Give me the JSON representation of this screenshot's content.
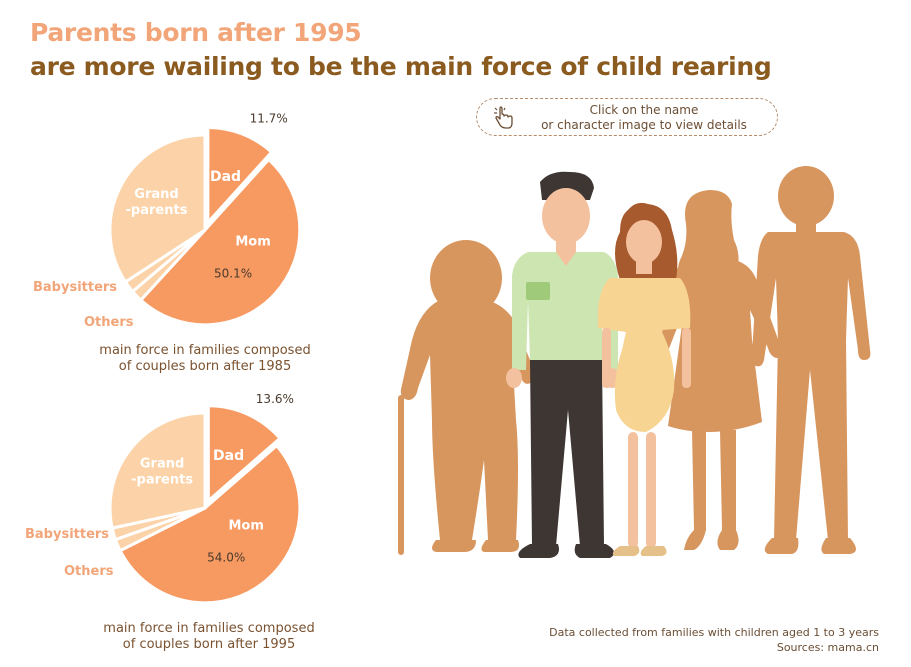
{
  "title": {
    "line1": "Parents born after 1995",
    "line2": "are more wailing to be the main force of child rearing"
  },
  "hint": {
    "icon": "pointer-hand-icon",
    "line1": "Click on the name",
    "line2": "or character image to view details"
  },
  "colors": {
    "mom": "#f79a62",
    "dad": "#f79a62",
    "grandparents": "#fcd3a8",
    "babysitters": "#fcd3a8",
    "others": "#fcd3a8",
    "label_orange": "#f2a578",
    "figure_brown": "#d8965f"
  },
  "chart_data": [
    {
      "type": "pie",
      "caption_line1": "main force in families composed",
      "caption_line2": "of couples born after 1985",
      "slices": [
        {
          "name": "Dad",
          "value": 11.7,
          "label": "11.7%"
        },
        {
          "name": "Mom",
          "value": 50.1,
          "label": "50.1%"
        },
        {
          "name": "Others",
          "value": 2.0
        },
        {
          "name": "Babysitters",
          "value": 2.0
        },
        {
          "name": "Grand\n-parents",
          "value": 34.2
        }
      ]
    },
    {
      "type": "pie",
      "caption_line1": "main force in families composed",
      "caption_line2": "of couples born after 1995",
      "slices": [
        {
          "name": "Dad",
          "value": 13.6,
          "label": "13.6%"
        },
        {
          "name": "Mom",
          "value": 54.0,
          "label": "54.0%"
        },
        {
          "name": "Others",
          "value": 2.0
        },
        {
          "name": "Babysitters",
          "value": 2.0
        },
        {
          "name": "Grand\n-parents",
          "value": 28.4
        }
      ]
    }
  ],
  "footer": {
    "line1": "Data collected from families with children aged 1 to 3 years",
    "line2": "Sources: mama.cn"
  }
}
